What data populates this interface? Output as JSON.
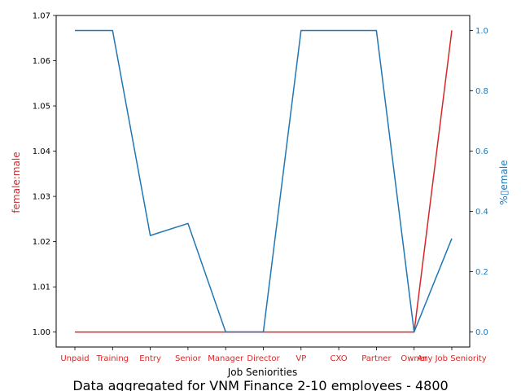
{
  "colors": {
    "left": "#d62728",
    "right": "#1f77b4",
    "axis": "#000000",
    "text": "#000000"
  },
  "chart_data": {
    "type": "line",
    "categories": [
      "Unpaid",
      "Training",
      "Entry",
      "Senior",
      "Manager",
      "Director",
      "VP",
      "CXO",
      "Partner",
      "Owner",
      "Any Job Seniority"
    ],
    "xlabel": "Job Seniorities",
    "caption": "Data aggregated for VNM Finance 2-10 employees - 4800",
    "left_axis": {
      "label": "female:male",
      "ylim": [
        0.9967,
        1.07
      ],
      "ticks": [
        1.0,
        1.01,
        1.02,
        1.03,
        1.04,
        1.05,
        1.06,
        1.07
      ],
      "tick_labels": [
        "1.00",
        "1.01",
        "1.02",
        "1.03",
        "1.04",
        "1.05",
        "1.06",
        "1.07"
      ]
    },
    "right_axis": {
      "label": "%▯emale",
      "ylim": [
        -0.05,
        1.05
      ],
      "ticks": [
        0.0,
        0.2,
        0.4,
        0.6,
        0.8,
        1.0
      ],
      "tick_labels": [
        "0.0",
        "0.2",
        "0.4",
        "0.6",
        "0.8",
        "1.0"
      ]
    },
    "series": [
      {
        "axis": "left",
        "values": [
          1.0,
          1.0,
          1.0,
          1.0,
          1.0,
          1.0,
          1.0,
          1.0,
          1.0,
          1.0,
          1.0667
        ]
      },
      {
        "axis": "right",
        "values": [
          1.0,
          1.0,
          0.32,
          0.36,
          0.0,
          0.0,
          1.0,
          1.0,
          1.0,
          0.0,
          0.31
        ]
      }
    ]
  }
}
